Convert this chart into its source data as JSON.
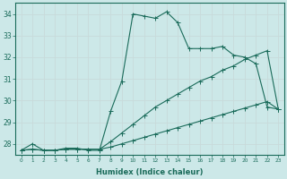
{
  "xlabel": "Humidex (Indice chaleur)",
  "background_color": "#cce8e8",
  "grid_color": "#b0d0d0",
  "line_color": "#1a6b5a",
  "xlim": [
    -0.5,
    23.5
  ],
  "ylim": [
    27.5,
    34.5
  ],
  "yticks": [
    28,
    29,
    30,
    31,
    32,
    33,
    34
  ],
  "xticks": [
    0,
    1,
    2,
    3,
    4,
    5,
    6,
    7,
    8,
    9,
    10,
    11,
    12,
    13,
    14,
    15,
    16,
    17,
    18,
    19,
    20,
    21,
    22,
    23
  ],
  "line1_x": [
    0,
    1,
    2,
    3,
    4,
    5,
    6,
    7,
    8,
    9,
    10,
    11,
    12,
    13,
    14,
    15,
    16,
    17,
    18,
    19,
    20,
    21,
    22,
    23
  ],
  "line1_y": [
    27.7,
    28.0,
    27.7,
    27.7,
    27.8,
    27.8,
    27.7,
    27.7,
    29.5,
    30.9,
    34.0,
    33.9,
    33.8,
    34.1,
    33.6,
    32.4,
    32.4,
    32.4,
    32.5,
    32.1,
    32.0,
    31.7,
    29.7,
    29.6
  ],
  "line2_x": [
    0,
    1,
    2,
    3,
    4,
    5,
    6,
    7,
    8,
    9,
    10,
    11,
    12,
    13,
    14,
    15,
    16,
    17,
    18,
    19,
    20,
    21,
    22,
    23
  ],
  "line2_y": [
    27.7,
    27.75,
    27.7,
    27.7,
    27.75,
    27.75,
    27.75,
    27.75,
    28.1,
    28.5,
    28.9,
    29.3,
    29.7,
    30.0,
    30.3,
    30.6,
    30.9,
    31.1,
    31.4,
    31.6,
    31.9,
    32.1,
    32.3,
    29.6
  ],
  "line3_x": [
    0,
    1,
    2,
    3,
    4,
    5,
    6,
    7,
    8,
    9,
    10,
    11,
    12,
    13,
    14,
    15,
    16,
    17,
    18,
    19,
    20,
    21,
    22,
    23
  ],
  "line3_y": [
    27.7,
    27.75,
    27.7,
    27.7,
    27.75,
    27.75,
    27.75,
    27.75,
    27.85,
    28.0,
    28.15,
    28.3,
    28.45,
    28.6,
    28.75,
    28.9,
    29.05,
    29.2,
    29.35,
    29.5,
    29.65,
    29.8,
    29.95,
    29.6
  ]
}
